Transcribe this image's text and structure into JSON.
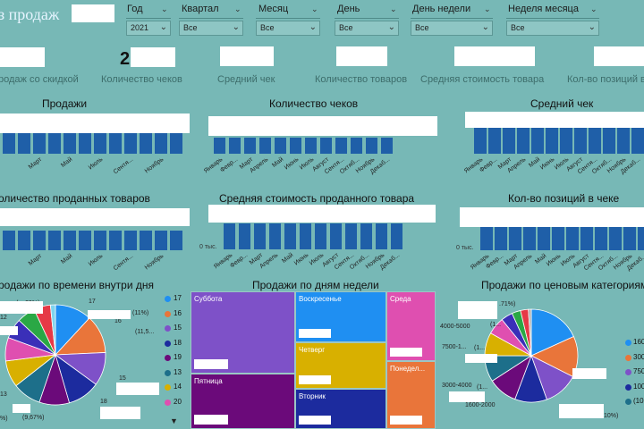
{
  "header": {
    "title": "з продаж"
  },
  "slicers": [
    {
      "label": "Год",
      "value": "2021"
    },
    {
      "label": "Квартал",
      "value": "Все"
    },
    {
      "label": "Месяц",
      "value": "Все"
    },
    {
      "label": "День",
      "value": "Все"
    },
    {
      "label": "День недели",
      "value": "Все"
    },
    {
      "label": "Неделя месяца",
      "value": "Все"
    }
  ],
  "kpis": {
    "checks_value": "2",
    "labels": [
      "родаж со скидкой",
      "Количество чеков",
      "Средний чек",
      "Количество товаров",
      "Средняя стоимость товара",
      "Кол-во позиций в"
    ]
  },
  "charts": {
    "row1": [
      {
        "title": "Продажи"
      },
      {
        "title": "Количество чеков"
      },
      {
        "title": "Средний чек"
      }
    ],
    "row2": [
      {
        "title": "оличество проданных товаров"
      },
      {
        "title": "Средняя стоимость проданного товара"
      },
      {
        "title": "Кол-во позиций в чеке"
      }
    ],
    "zero_label": "0 тыс.",
    "months_full": [
      "Январь",
      "Февр...",
      "Март",
      "Апрель",
      "Май",
      "Июнь",
      "Июль",
      "Август",
      "Сентя...",
      "Октяб...",
      "Ноябрь",
      "Декаб..."
    ],
    "months_cut": [
      "Март",
      "Май",
      "Июль",
      "Сентя...",
      "Ноябрь"
    ],
    "months_right": [
      "Январь",
      "Февр...",
      "Март",
      "Апрель",
      "Май",
      "Июнь",
      "Июль",
      "Август",
      "Сентя...",
      "Октяб...",
      "Ноябрь",
      "Декаб..."
    ]
  },
  "pie_time": {
    "title": "родажи по времени внутри дня",
    "legend": [
      "17",
      "16",
      "15",
      "18",
      "19",
      "13",
      "14",
      "20"
    ],
    "labels": [
      "17",
      "(11%)",
      "16",
      "(11,5...",
      "(...,29%)",
      "12",
      "13",
      "15",
      "18",
      "(9,67%)",
      "%)"
    ]
  },
  "treemap": {
    "title": "Продажи по дням недели",
    "tiles": [
      "Суббота",
      "Воскресенье",
      "Среда",
      "Четверг",
      "Понедел...",
      "Пятница",
      "Вторник"
    ]
  },
  "pie_price": {
    "title": "Продажи по ценовым категориям",
    "legend": [
      "160",
      "300",
      "750",
      "100",
      "(10..."
    ],
    "labels": [
      ".71%)",
      "4000-5000",
      "(1...",
      "7500-1...",
      "(1...",
      "3000-4000",
      "(1...",
      "1600-2000",
      "10%)"
    ]
  },
  "colors": {
    "bg": "#77b8b6",
    "bar": "#1f5fa8",
    "accent": "#e6f4ff"
  }
}
